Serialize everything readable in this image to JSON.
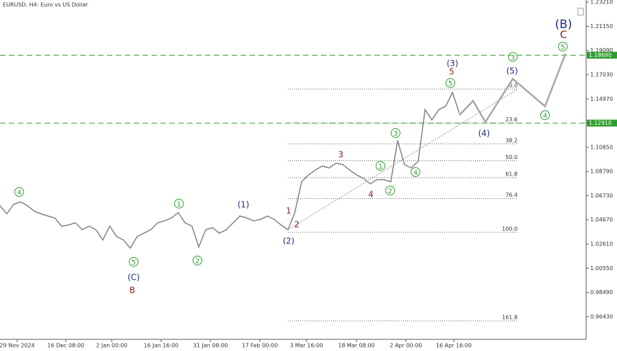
{
  "chart_data": {
    "type": "line",
    "title": "EURUSD, H4:  Euro vs US Dollar",
    "ylim": [
      0.945,
      1.2339
    ],
    "xlim": [
      0,
      85.5
    ],
    "yticks": [
      {
        "value": 1.2321,
        "label": "1.23210"
      },
      {
        "value": 1.2115,
        "label": "1.21150"
      },
      {
        "value": 1.1909,
        "label": "1.19090"
      },
      {
        "value": 1.1703,
        "label": "1.17030"
      },
      {
        "value": 1.1497,
        "label": "1.14970"
      },
      {
        "value": 1.1291,
        "label": "1.12910"
      },
      {
        "value": 1.1085,
        "label": "1.10850"
      },
      {
        "value": 1.0879,
        "label": "1.08790"
      },
      {
        "value": 1.0673,
        "label": "1.06730"
      },
      {
        "value": 1.0467,
        "label": "1.04670"
      },
      {
        "value": 1.0261,
        "label": "1.02610"
      },
      {
        "value": 1.0055,
        "label": "1.00550"
      },
      {
        "value": 0.9849,
        "label": "0.98490"
      },
      {
        "value": 0.9643,
        "label": "0.96430"
      }
    ],
    "xticks": [
      {
        "value": 2.5,
        "label": "29 Nov 2024"
      },
      {
        "value": 9.6,
        "label": "16 Dec 08:00"
      },
      {
        "value": 16.3,
        "label": "2 Jan 00:00"
      },
      {
        "value": 23.5,
        "label": "16 Jan 16:00"
      },
      {
        "value": 30.7,
        "label": "31 Jan 08:00"
      },
      {
        "value": 37.9,
        "label": "17 Feb 00:00"
      },
      {
        "value": 44.7,
        "label": "3 Mar 16:00"
      },
      {
        "value": 52,
        "label": "18 Mar 08:00"
      },
      {
        "value": 59.2,
        "label": "2 Apr 00:00"
      },
      {
        "value": 66.2,
        "label": "16 Apr 16:00"
      }
    ],
    "series": [
      {
        "color": "#808080",
        "values": [
          1.0588,
          1.0518,
          1.06,
          1.062,
          1.0588,
          1.0541,
          1.0518,
          1.05,
          1.0483,
          1.0413,
          1.0424,
          1.0442,
          1.0383,
          1.0413,
          1.0383,
          1.0296,
          1.0413,
          1.0325,
          1.0296,
          1.0226,
          1.0325,
          1.0354,
          1.0383,
          1.0442,
          1.0459,
          1.0483,
          1.0529,
          1.0442,
          1.0413,
          1.0237,
          1.0383,
          1.0401,
          1.0354,
          1.0383,
          1.0442,
          1.05,
          1.0483,
          1.0459,
          1.0471,
          1.05,
          1.0471,
          1.0424,
          1.0383,
          1.0529,
          1.0792,
          1.085,
          1.0891,
          1.0926,
          1.0909,
          1.095,
          1.0938,
          1.0891,
          1.085,
          1.0821,
          1.0774,
          1.0809,
          1.0809,
          1.0792,
          1.1142,
          1.0938,
          1.0909,
          1.0967,
          1.1405,
          1.1318,
          1.1405,
          1.1434,
          1.1551,
          1.1376
        ]
      },
      {
        "color": "#a6a6a6",
        "x": [
          67,
          69,
          70.8,
          74.8,
          79.5,
          82.5
        ],
        "values": [
          1.1358,
          1.1481,
          1.13,
          1.1668,
          1.1434,
          1.1884
        ]
      }
    ],
    "levels": [
      {
        "value": 1.1869,
        "label": "1.18690"
      },
      {
        "value": 1.1291,
        "label": "1.12910"
      }
    ],
    "level_color": "#2e9e2e",
    "fib": {
      "high": 1.158,
      "low": 1.0361,
      "levels": [
        {
          "value": 0,
          "label": "0.0"
        },
        23.6,
        38.2,
        {
          "value": 50,
          "label": "50.0"
        },
        61.8,
        76.4,
        {
          "value": 100,
          "label": "100.0"
        },
        161.8
      ]
    },
    "wave_labels": [
      "4",
      "5",
      "(C)",
      "B",
      "1",
      "2",
      "(1)",
      "1",
      "2",
      "(2)",
      "3",
      "4",
      "1",
      "2",
      "3",
      "4",
      "5",
      "5",
      "(3)",
      "(4)",
      "(5)",
      "3",
      "4",
      "5",
      "C",
      "(B)"
    ]
  }
}
